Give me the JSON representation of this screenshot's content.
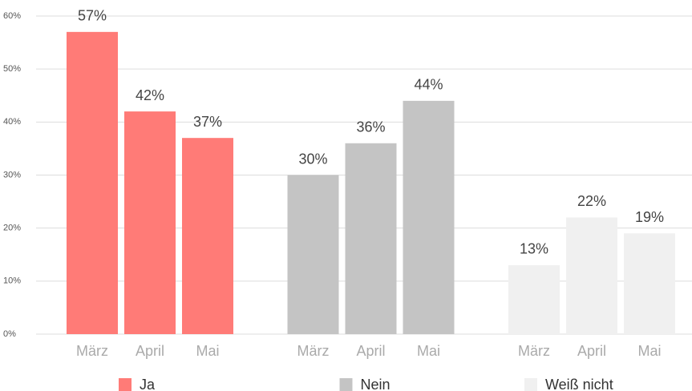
{
  "chart_data": {
    "type": "bar",
    "categories": [
      "März",
      "April",
      "Mai"
    ],
    "series": [
      {
        "name": "Ja",
        "color": "#ff7b77",
        "values": [
          57,
          42,
          37
        ],
        "value_labels": [
          "57%",
          "42%",
          "37%"
        ]
      },
      {
        "name": "Nein",
        "color": "#c4c4c4",
        "values": [
          30,
          36,
          44
        ],
        "value_labels": [
          "30%",
          "36%",
          "44%"
        ]
      },
      {
        "name": "Weiß nicht",
        "color": "#f0f0f0",
        "values": [
          13,
          22,
          19
        ],
        "value_labels": [
          "13%",
          "22%",
          "19%"
        ]
      }
    ],
    "ylim": [
      0,
      60
    ],
    "yticks": [
      {
        "value": 0,
        "label": "0%"
      },
      {
        "value": 10,
        "label": "10%"
      },
      {
        "value": 20,
        "label": "20%"
      },
      {
        "value": 30,
        "label": "30%"
      },
      {
        "value": 40,
        "label": "40%"
      },
      {
        "value": 50,
        "label": "50%"
      },
      {
        "value": 60,
        "label": "60%"
      }
    ],
    "grid": true,
    "legend": "bottom"
  }
}
